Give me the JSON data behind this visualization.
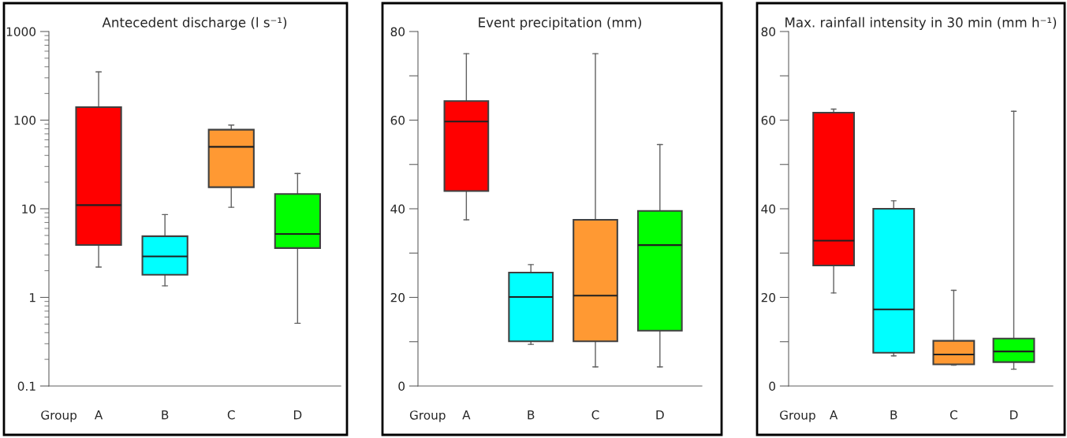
{
  "chart_data": [
    {
      "type": "box",
      "title": "Antecedent discharge (l s⁻¹)",
      "xlabel": "Group",
      "categories": [
        "A",
        "B",
        "C",
        "D"
      ],
      "colors": [
        "#ff0000",
        "#00ffff",
        "#ff9933",
        "#00ff00"
      ],
      "log": true,
      "ylim": [
        0.1,
        1000
      ],
      "yticks": [
        0.1,
        1,
        10,
        100,
        1000
      ],
      "boxes": [
        {
          "low": 2.2,
          "q1": 3.9,
          "median": 11,
          "q3": 140,
          "high": 350
        },
        {
          "low": 1.35,
          "q1": 1.8,
          "median": 2.9,
          "q3": 4.9,
          "high": 8.6
        },
        {
          "low": 10.4,
          "q1": 17.5,
          "median": 50,
          "q3": 78,
          "high": 88
        },
        {
          "low": 0.51,
          "q1": 3.6,
          "median": 5.2,
          "q3": 14.7,
          "high": 25
        }
      ]
    },
    {
      "type": "box",
      "title": "Event precipitation (mm)",
      "xlabel": "Group",
      "categories": [
        "A",
        "B",
        "C",
        "D"
      ],
      "colors": [
        "#ff0000",
        "#00ffff",
        "#ff9933",
        "#00ff00"
      ],
      "ylim": [
        0,
        80
      ],
      "yticks": [
        0,
        {
          "value": 10,
          "label": null
        },
        20,
        {
          "value": 30,
          "label": null
        },
        40,
        {
          "value": 50,
          "label": null
        },
        60,
        {
          "value": 70,
          "label": null
        },
        80
      ],
      "boxes": [
        {
          "low": 37.5,
          "q1": 44,
          "median": 59.7,
          "q3": 64.3,
          "high": 75
        },
        {
          "low": 9.4,
          "q1": 10.1,
          "median": 20.1,
          "q3": 25.6,
          "high": 27.4
        },
        {
          "low": 4.3,
          "q1": 10.1,
          "median": 20.4,
          "q3": 37.5,
          "high": 75
        },
        {
          "low": 4.3,
          "q1": 12.5,
          "median": 31.8,
          "q3": 39.5,
          "high": 54.5
        }
      ]
    },
    {
      "type": "box",
      "title": "Max. rainfall intensity in 30 min (mm h⁻¹)",
      "xlabel": "Group",
      "categories": [
        "A",
        "B",
        "C",
        "D"
      ],
      "colors": [
        "#ff0000",
        "#00ffff",
        "#ff9933",
        "#00ff00"
      ],
      "ylim": [
        0,
        80
      ],
      "yticks": [
        0,
        {
          "value": 10,
          "label": null
        },
        20,
        {
          "value": 30,
          "label": null
        },
        40,
        {
          "value": 50,
          "label": null
        },
        60,
        {
          "value": 70,
          "label": null
        },
        80
      ],
      "boxes": [
        {
          "low": 21,
          "q1": 27.2,
          "median": 32.8,
          "q3": 61.7,
          "high": 62.5
        },
        {
          "low": 6.8,
          "q1": 7.5,
          "median": 17.3,
          "q3": 40,
          "high": 41.8
        },
        {
          "low": 4.7,
          "q1": 4.9,
          "median": 7.1,
          "q3": 10.2,
          "high": 21.6
        },
        {
          "low": 3.8,
          "q1": 5.4,
          "median": 7.8,
          "q3": 10.7,
          "high": 62
        }
      ]
    }
  ]
}
